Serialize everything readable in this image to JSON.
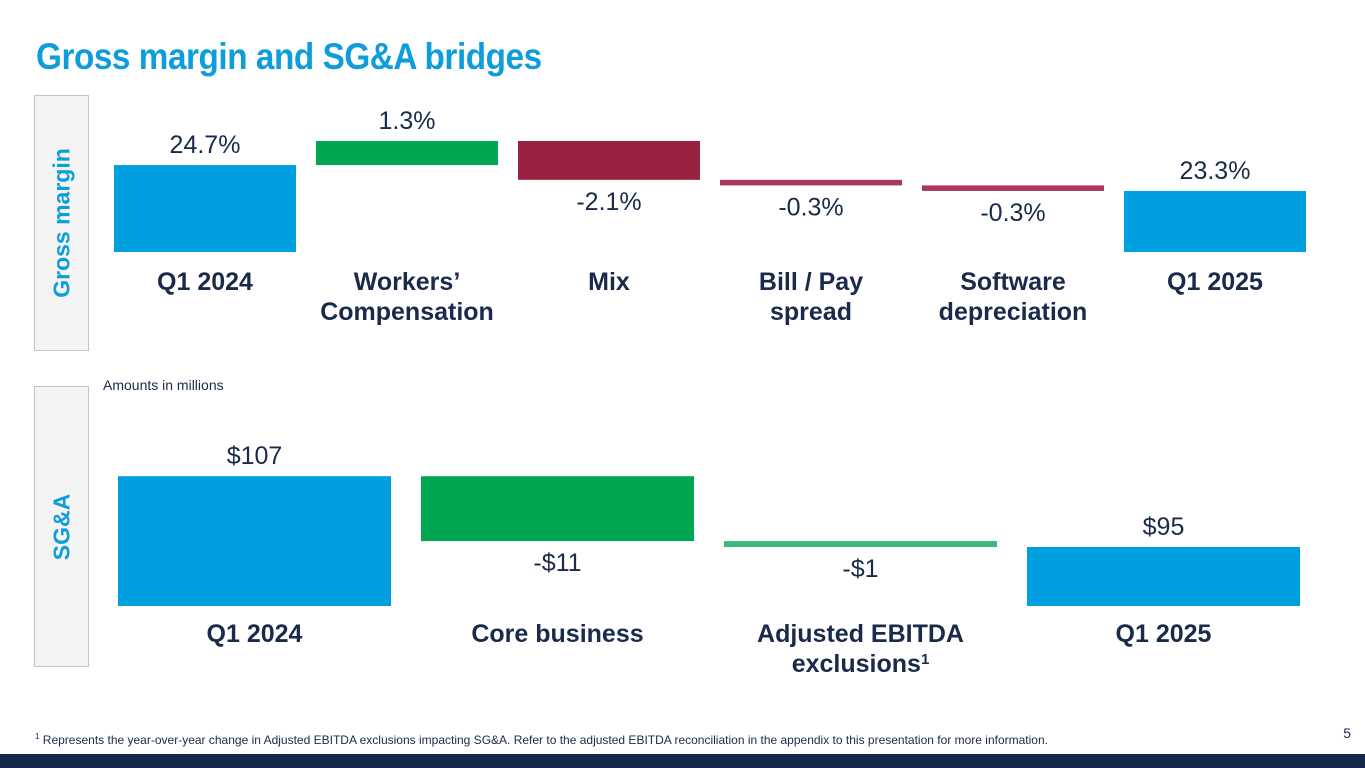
{
  "title": "Gross margin and SG&A bridges",
  "colors": {
    "title": "#0e9ddb",
    "total_bar": "#009fe0",
    "increase": "#00a651",
    "decrease": "#9b2140",
    "decrease_light": "#a8395a",
    "increase_light": "#3cb97a",
    "text": "#1a2a4a",
    "footer": "#14294a"
  },
  "chart_data": [
    {
      "type": "bar",
      "subtype": "waterfall",
      "section_label": "Gross margin",
      "unit": "%",
      "categories": [
        "Q1 2024",
        "Workers’ Compensation",
        "Mix",
        "Bill / Pay spread",
        "Software depreciation",
        "Q1 2025"
      ],
      "category_lines": [
        [
          "Q1 2024"
        ],
        [
          "Workers’",
          "Compensation"
        ],
        [
          "Mix"
        ],
        [
          "Bill / Pay",
          "spread"
        ],
        [
          "Software",
          "depreciation"
        ],
        [
          "Q1 2025"
        ]
      ],
      "values": [
        24.7,
        1.3,
        -2.1,
        -0.3,
        -0.3,
        23.3
      ],
      "kinds": [
        "total",
        "delta",
        "delta",
        "delta",
        "delta",
        "total"
      ],
      "labels": [
        "24.7%",
        "1.3%",
        "-2.1%",
        "-0.3%",
        "-0.3%",
        "23.3%"
      ]
    },
    {
      "type": "bar",
      "subtype": "waterfall",
      "section_label": "SG&A",
      "unit": "$M",
      "note": "Amounts in millions",
      "categories": [
        "Q1 2024",
        "Core business",
        "Adjusted EBITDA exclusions",
        "Q1 2025"
      ],
      "category_lines": [
        [
          "Q1 2024"
        ],
        [
          "Core business"
        ],
        [
          "Adjusted EBITDA",
          "exclusions"
        ],
        [
          "Q1 2025"
        ]
      ],
      "category_superscripts": [
        "",
        "",
        "1",
        ""
      ],
      "values": [
        107,
        -11,
        -1,
        95
      ],
      "kinds": [
        "total",
        "delta",
        "delta",
        "total"
      ],
      "labels": [
        "$107",
        "-$11",
        "-$1",
        "$95"
      ],
      "delta_favorable": true
    }
  ],
  "footnote": {
    "marker": "1",
    "text": "Represents the year-over-year change in Adjusted EBITDA exclusions impacting SG&A. Refer to the adjusted EBITDA reconciliation in the appendix to this presentation for more information."
  },
  "page_number": "5"
}
